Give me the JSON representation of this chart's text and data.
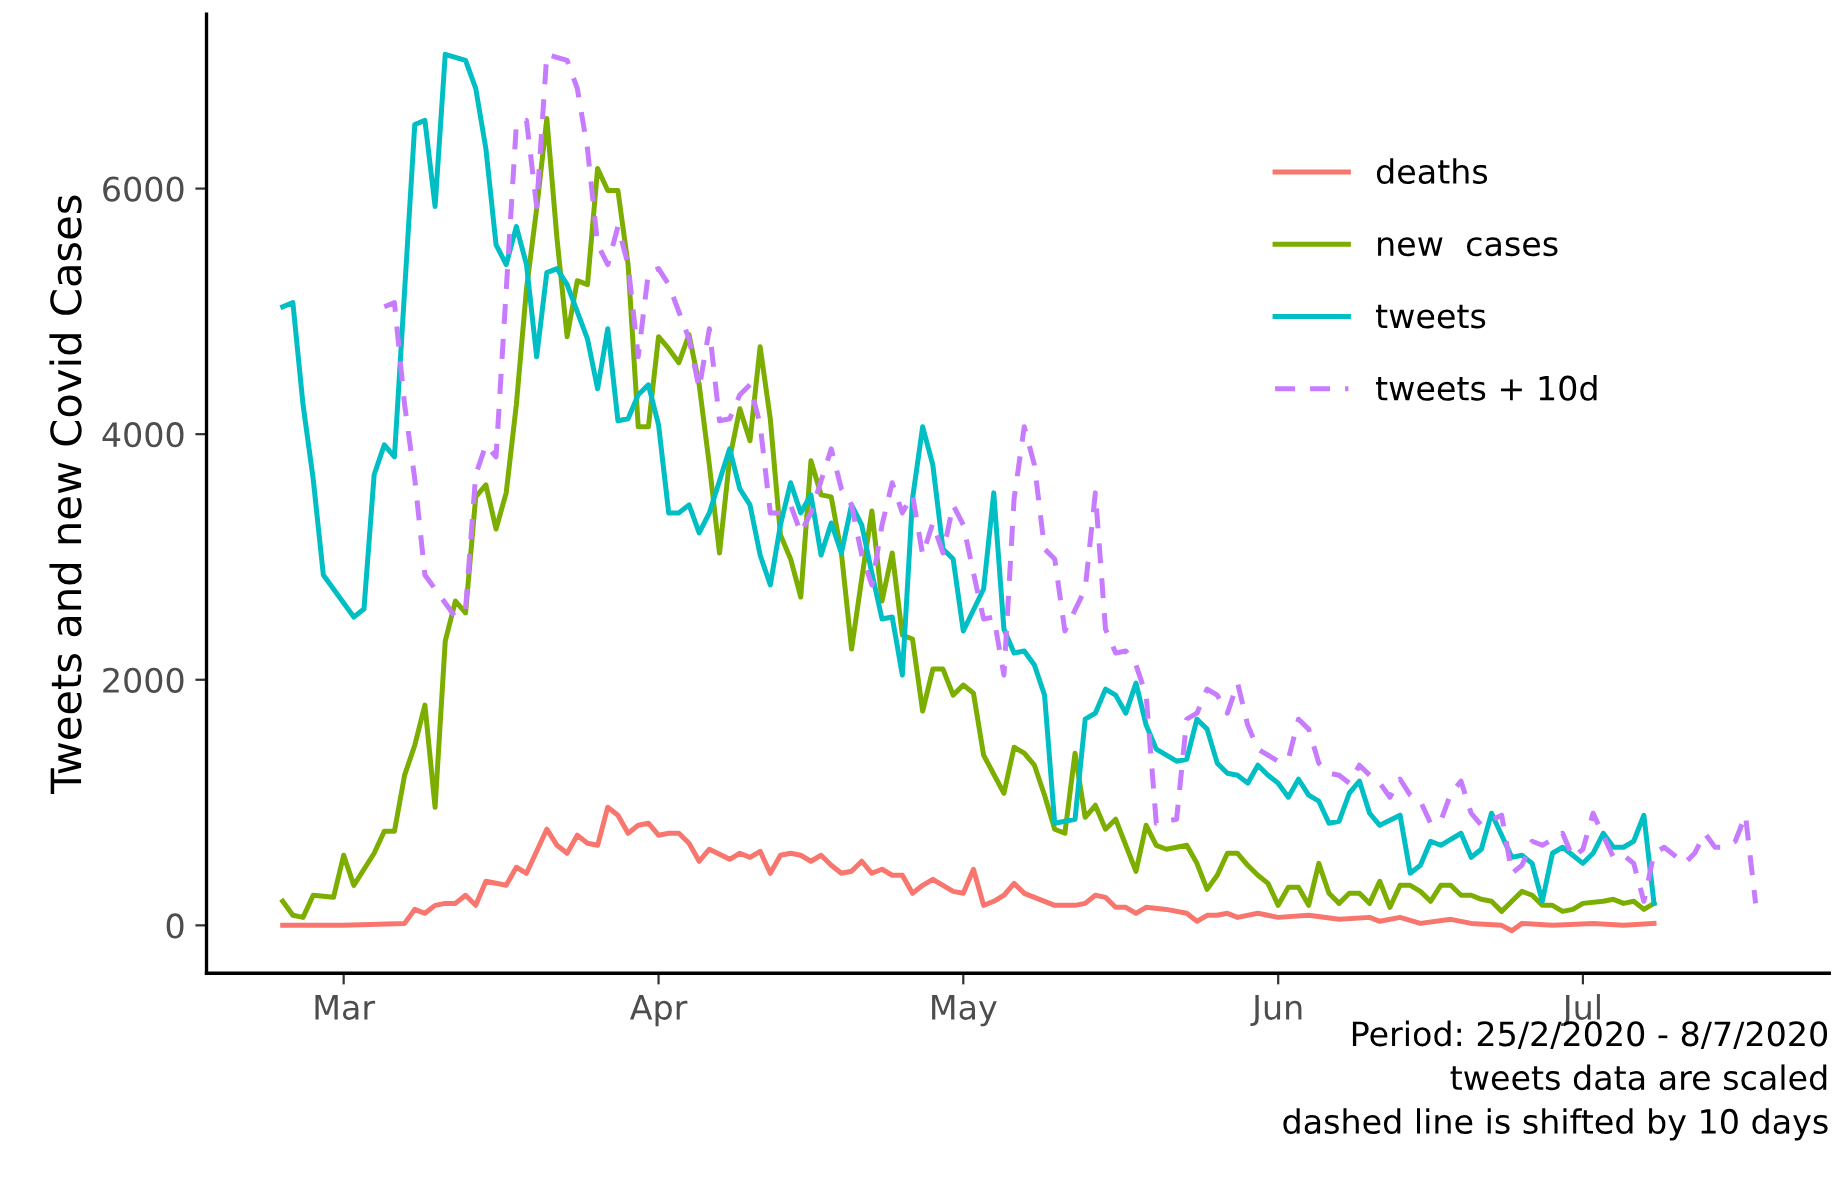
{
  "chart_data": {
    "type": "line",
    "ylabel": "Tweets and new Covid Cases",
    "legend": "right",
    "grid": false,
    "marker": "none",
    "xlim": [
      "2020-02-16T12:00",
      "2020-07-25T06:00"
    ],
    "ylim": [
      -390,
      7420
    ],
    "yticks": [
      0,
      2000,
      4000,
      6000
    ],
    "xticks": [
      {
        "value": "2020-03-01",
        "label": "Mar"
      },
      {
        "value": "2020-04-01",
        "label": "Apr"
      },
      {
        "value": "2020-05-01",
        "label": "May"
      },
      {
        "value": "2020-06-01",
        "label": "Jun"
      },
      {
        "value": "2020-07-01",
        "label": "Jul"
      }
    ],
    "annotations": [
      "Period: 25/2/2020 - 8/7/2020",
      "tweets data are scaled",
      "dashed line is shifted by 10 days"
    ],
    "series": [
      {
        "name": "deaths",
        "color": "#f8766d",
        "line_style": "solid",
        "x": [
          "2020-02-24",
          "2020-03-01",
          "2020-03-07",
          "2020-03-08",
          "2020-03-09",
          "2020-03-10",
          "2020-03-11",
          "2020-03-12",
          "2020-03-13",
          "2020-03-14",
          "2020-03-15",
          "2020-03-17",
          "2020-03-18",
          "2020-03-19",
          "2020-03-21",
          "2020-03-22",
          "2020-03-23",
          "2020-03-24",
          "2020-03-25",
          "2020-03-26",
          "2020-03-27",
          "2020-03-28",
          "2020-03-29",
          "2020-03-30",
          "2020-03-31",
          "2020-04-01",
          "2020-04-02",
          "2020-04-03",
          "2020-04-04",
          "2020-04-05",
          "2020-04-06",
          "2020-04-08",
          "2020-04-09",
          "2020-04-10",
          "2020-04-11",
          "2020-04-12",
          "2020-04-13",
          "2020-04-14",
          "2020-04-15",
          "2020-04-16",
          "2020-04-17",
          "2020-04-18",
          "2020-04-19",
          "2020-04-20",
          "2020-04-21",
          "2020-04-22",
          "2020-04-23",
          "2020-04-24",
          "2020-04-25",
          "2020-04-26",
          "2020-04-27",
          "2020-04-28",
          "2020-04-29",
          "2020-04-30",
          "2020-05-01",
          "2020-05-02",
          "2020-05-03",
          "2020-05-04",
          "2020-05-05",
          "2020-05-06",
          "2020-05-07",
          "2020-05-08",
          "2020-05-10",
          "2020-05-11",
          "2020-05-12",
          "2020-05-13",
          "2020-05-14",
          "2020-05-15",
          "2020-05-16",
          "2020-05-17",
          "2020-05-18",
          "2020-05-19",
          "2020-05-21",
          "2020-05-23",
          "2020-05-24",
          "2020-05-25",
          "2020-05-26",
          "2020-05-27",
          "2020-05-28",
          "2020-05-30",
          "2020-06-01",
          "2020-06-04",
          "2020-06-07",
          "2020-06-10",
          "2020-06-11",
          "2020-06-13",
          "2020-06-15",
          "2020-06-18",
          "2020-06-20",
          "2020-06-23",
          "2020-06-24",
          "2020-06-25",
          "2020-06-28",
          "2020-07-02",
          "2020-07-05",
          "2020-07-08"
        ],
        "values": [
          0,
          0,
          16,
          130,
          98,
          163,
          179,
          179,
          245,
          163,
          359,
          326,
          473,
          424,
          783,
          652,
          587,
          734,
          669,
          652,
          962,
          897,
          750,
          815,
          832,
          734,
          750,
          750,
          669,
          522,
          620,
          538,
          587,
          554,
          603,
          424,
          571,
          587,
          571,
          522,
          571,
          489,
          424,
          440,
          522,
          424,
          457,
          408,
          408,
          261,
          326,
          375,
          326,
          277,
          261,
          457,
          163,
          196,
          245,
          342,
          261,
          228,
          163,
          163,
          163,
          179,
          245,
          228,
          147,
          147,
          98,
          147,
          130,
          98,
          33,
          82,
          82,
          98,
          65,
          98,
          65,
          82,
          49,
          65,
          33,
          65,
          16,
          49,
          16,
          0,
          -44,
          16,
          0,
          16,
          0,
          16
        ]
      },
      {
        "name": "new  cases",
        "color": "#7cae00",
        "line_style": "solid",
        "x": [
          "2020-02-24",
          "2020-02-25",
          "2020-02-26",
          "2020-02-27",
          "2020-02-29",
          "2020-03-01",
          "2020-03-02",
          "2020-03-04",
          "2020-03-05",
          "2020-03-06",
          "2020-03-07",
          "2020-03-08",
          "2020-03-09",
          "2020-03-10",
          "2020-03-11",
          "2020-03-12",
          "2020-03-13",
          "2020-03-14",
          "2020-03-15",
          "2020-03-16",
          "2020-03-17",
          "2020-03-18",
          "2020-03-19",
          "2020-03-20",
          "2020-03-21",
          "2020-03-22",
          "2020-03-23",
          "2020-03-24",
          "2020-03-25",
          "2020-03-26",
          "2020-03-27",
          "2020-03-28",
          "2020-03-29",
          "2020-03-30",
          "2020-03-31",
          "2020-04-01",
          "2020-04-02",
          "2020-04-03",
          "2020-04-04",
          "2020-04-05",
          "2020-04-06",
          "2020-04-07",
          "2020-04-08",
          "2020-04-09",
          "2020-04-10",
          "2020-04-11",
          "2020-04-12",
          "2020-04-13",
          "2020-04-14",
          "2020-04-15",
          "2020-04-16",
          "2020-04-17",
          "2020-04-18",
          "2020-04-19",
          "2020-04-20",
          "2020-04-21",
          "2020-04-22",
          "2020-04-23",
          "2020-04-24",
          "2020-04-25",
          "2020-04-26",
          "2020-04-27",
          "2020-04-28",
          "2020-04-29",
          "2020-04-30",
          "2020-05-01",
          "2020-05-02",
          "2020-05-03",
          "2020-05-05",
          "2020-05-06",
          "2020-05-07",
          "2020-05-08",
          "2020-05-09",
          "2020-05-10",
          "2020-05-11",
          "2020-05-12",
          "2020-05-13",
          "2020-05-14",
          "2020-05-15",
          "2020-05-16",
          "2020-05-18",
          "2020-05-19",
          "2020-05-20",
          "2020-05-21",
          "2020-05-23",
          "2020-05-24",
          "2020-05-25",
          "2020-05-26",
          "2020-05-27",
          "2020-05-28",
          "2020-05-29",
          "2020-05-30",
          "2020-05-31",
          "2020-06-01",
          "2020-06-02",
          "2020-06-03",
          "2020-06-04",
          "2020-06-05",
          "2020-06-06",
          "2020-06-07",
          "2020-06-08",
          "2020-06-09",
          "2020-06-10",
          "2020-06-11",
          "2020-06-12",
          "2020-06-13",
          "2020-06-14",
          "2020-06-15",
          "2020-06-16",
          "2020-06-17",
          "2020-06-18",
          "2020-06-19",
          "2020-06-20",
          "2020-06-21",
          "2020-06-22",
          "2020-06-23",
          "2020-06-24",
          "2020-06-25",
          "2020-06-26",
          "2020-06-27",
          "2020-06-28",
          "2020-06-29",
          "2020-06-30",
          "2020-07-01",
          "2020-07-03",
          "2020-07-04",
          "2020-07-05",
          "2020-07-06",
          "2020-07-07",
          "2020-07-08"
        ],
        "values": [
          196,
          82,
          65,
          245,
          228,
          571,
          326,
          587,
          766,
          766,
          1223,
          1467,
          1794,
          962,
          2315,
          2641,
          2544,
          3489,
          3587,
          3228,
          3522,
          4240,
          5185,
          5837,
          6571,
          5593,
          4794,
          5250,
          5218,
          6163,
          5984,
          5984,
          5381,
          4060,
          4060,
          4794,
          4696,
          4582,
          4810,
          4402,
          3750,
          3033,
          3799,
          4207,
          3946,
          4712,
          4125,
          3180,
          2984,
          2674,
          3783,
          3506,
          3489,
          3033,
          2250,
          2821,
          3375,
          2641,
          3033,
          2364,
          2332,
          1745,
          2087,
          2087,
          1875,
          1957,
          1891,
          1386,
          1076,
          1451,
          1402,
          1304,
          1060,
          783,
          750,
          1402,
          880,
          978,
          783,
          864,
          440,
          815,
          652,
          620,
          652,
          505,
          293,
          408,
          587,
          587,
          489,
          408,
          342,
          163,
          310,
          310,
          163,
          505,
          261,
          179,
          261,
          261,
          179,
          359,
          147,
          326,
          326,
          277,
          196,
          326,
          326,
          245,
          245,
          212,
          196,
          114,
          196,
          277,
          245,
          163,
          163,
          114,
          130,
          179,
          196,
          212,
          179,
          196,
          130,
          179
        ]
      },
      {
        "name": "tweets",
        "color": "#00bfc4",
        "line_style": "solid",
        "x": [
          "2020-02-24",
          "2020-02-25",
          "2020-02-26",
          "2020-02-27",
          "2020-02-28",
          "2020-03-02",
          "2020-03-03",
          "2020-03-04",
          "2020-03-05",
          "2020-03-06",
          "2020-03-08",
          "2020-03-09",
          "2020-03-10",
          "2020-03-11",
          "2020-03-13",
          "2020-03-14",
          "2020-03-15",
          "2020-03-16",
          "2020-03-17",
          "2020-03-18",
          "2020-03-19",
          "2020-03-20",
          "2020-03-21",
          "2020-03-22",
          "2020-03-23",
          "2020-03-25",
          "2020-03-26",
          "2020-03-27",
          "2020-03-28",
          "2020-03-29",
          "2020-03-30",
          "2020-03-31",
          "2020-04-01",
          "2020-04-02",
          "2020-04-03",
          "2020-04-04",
          "2020-04-05",
          "2020-04-06",
          "2020-04-08",
          "2020-04-09",
          "2020-04-10",
          "2020-04-11",
          "2020-04-12",
          "2020-04-13",
          "2020-04-14",
          "2020-04-15",
          "2020-04-16",
          "2020-04-17",
          "2020-04-18",
          "2020-04-19",
          "2020-04-20",
          "2020-04-21",
          "2020-04-22",
          "2020-04-23",
          "2020-04-24",
          "2020-04-25",
          "2020-04-26",
          "2020-04-27",
          "2020-04-28",
          "2020-04-29",
          "2020-04-30",
          "2020-05-01",
          "2020-05-03",
          "2020-05-04",
          "2020-05-05",
          "2020-05-06",
          "2020-05-07",
          "2020-05-08",
          "2020-05-09",
          "2020-05-10",
          "2020-05-12",
          "2020-05-13",
          "2020-05-14",
          "2020-05-15",
          "2020-05-16",
          "2020-05-17",
          "2020-05-18",
          "2020-05-19",
          "2020-05-20",
          "2020-05-22",
          "2020-05-23",
          "2020-05-24",
          "2020-05-25",
          "2020-05-26",
          "2020-05-27",
          "2020-05-28",
          "2020-05-29",
          "2020-05-30",
          "2020-05-31",
          "2020-06-01",
          "2020-06-02",
          "2020-06-03",
          "2020-06-04",
          "2020-06-05",
          "2020-06-06",
          "2020-06-07",
          "2020-06-08",
          "2020-06-09",
          "2020-06-10",
          "2020-06-11",
          "2020-06-13",
          "2020-06-14",
          "2020-06-15",
          "2020-06-16",
          "2020-06-17",
          "2020-06-19",
          "2020-06-20",
          "2020-06-21",
          "2020-06-22",
          "2020-06-23",
          "2020-06-24",
          "2020-06-25",
          "2020-06-26",
          "2020-06-27",
          "2020-06-28",
          "2020-06-29",
          "2020-06-30",
          "2020-07-01",
          "2020-07-02",
          "2020-07-03",
          "2020-07-04",
          "2020-07-05",
          "2020-07-06",
          "2020-07-07",
          "2020-07-08"
        ],
        "values": [
          5038,
          5071,
          4240,
          3636,
          2853,
          2511,
          2576,
          3669,
          3913,
          3815,
          6522,
          6555,
          5854,
          7093,
          7044,
          6816,
          6326,
          5544,
          5381,
          5691,
          5381,
          4631,
          5316,
          5348,
          5218,
          4777,
          4370,
          4859,
          4109,
          4125,
          4321,
          4402,
          4076,
          3359,
          3359,
          3424,
          3196,
          3359,
          3881,
          3555,
          3424,
          3016,
          2772,
          3261,
          3604,
          3359,
          3506,
          3016,
          3277,
          3033,
          3424,
          3261,
          2870,
          2495,
          2511,
          2038,
          3473,
          4060,
          3750,
          3065,
          2984,
          2397,
          2739,
          3522,
          2413,
          2218,
          2234,
          2120,
          1875,
          832,
          864,
          1679,
          1728,
          1924,
          1875,
          1728,
          1973,
          1631,
          1435,
          1337,
          1353,
          1679,
          1598,
          1321,
          1239,
          1223,
          1158,
          1304,
          1223,
          1158,
          1044,
          1190,
          1060,
          1011,
          832,
          848,
          1076,
          1174,
          913,
          815,
          897,
          424,
          489,
          685,
          652,
          750,
          554,
          620,
          913,
          734,
          554,
          571,
          505,
          196,
          587,
          636,
          571,
          505,
          587,
          750,
          636,
          636,
          685,
          897,
          179
        ]
      },
      {
        "name": "tweets + 10d",
        "color": "#c77cff",
        "line_style": "dashed",
        "x": [
          "2020-03-05",
          "2020-03-06",
          "2020-03-07",
          "2020-03-08",
          "2020-03-09",
          "2020-03-12",
          "2020-03-13",
          "2020-03-14",
          "2020-03-15",
          "2020-03-16",
          "2020-03-18",
          "2020-03-19",
          "2020-03-20",
          "2020-03-21",
          "2020-03-23",
          "2020-03-24",
          "2020-03-25",
          "2020-03-26",
          "2020-03-27",
          "2020-03-28",
          "2020-03-29",
          "2020-03-30",
          "2020-03-31",
          "2020-04-01",
          "2020-04-02",
          "2020-04-04",
          "2020-04-05",
          "2020-04-06",
          "2020-04-07",
          "2020-04-08",
          "2020-04-09",
          "2020-04-10",
          "2020-04-11",
          "2020-04-12",
          "2020-04-13",
          "2020-04-14",
          "2020-04-15",
          "2020-04-16",
          "2020-04-18",
          "2020-04-19",
          "2020-04-20",
          "2020-04-21",
          "2020-04-22",
          "2020-04-23",
          "2020-04-24",
          "2020-04-25",
          "2020-04-26",
          "2020-04-27",
          "2020-04-28",
          "2020-04-29",
          "2020-04-30",
          "2020-05-01",
          "2020-05-02",
          "2020-05-03",
          "2020-05-04",
          "2020-05-05",
          "2020-05-06",
          "2020-05-07",
          "2020-05-08",
          "2020-05-09",
          "2020-05-10",
          "2020-05-11",
          "2020-05-13",
          "2020-05-14",
          "2020-05-15",
          "2020-05-16",
          "2020-05-17",
          "2020-05-18",
          "2020-05-19",
          "2020-05-20",
          "2020-05-22",
          "2020-05-23",
          "2020-05-24",
          "2020-05-25",
          "2020-05-26",
          "2020-05-27",
          "2020-05-28",
          "2020-05-29",
          "2020-05-30",
          "2020-06-01",
          "2020-06-02",
          "2020-06-03",
          "2020-06-04",
          "2020-06-05",
          "2020-06-06",
          "2020-06-07",
          "2020-06-08",
          "2020-06-09",
          "2020-06-10",
          "2020-06-11",
          "2020-06-12",
          "2020-06-13",
          "2020-06-14",
          "2020-06-15",
          "2020-06-16",
          "2020-06-17",
          "2020-06-18",
          "2020-06-19",
          "2020-06-20",
          "2020-06-21",
          "2020-06-23",
          "2020-06-24",
          "2020-06-25",
          "2020-06-26",
          "2020-06-27",
          "2020-06-29",
          "2020-06-30",
          "2020-07-01",
          "2020-07-02",
          "2020-07-03",
          "2020-07-04",
          "2020-07-05",
          "2020-07-06",
          "2020-07-07",
          "2020-07-08",
          "2020-07-09",
          "2020-07-10",
          "2020-07-11",
          "2020-07-12",
          "2020-07-13",
          "2020-07-14",
          "2020-07-15",
          "2020-07-16",
          "2020-07-17",
          "2020-07-18"
        ],
        "values": [
          5038,
          5071,
          4240,
          3636,
          2853,
          2511,
          2576,
          3669,
          3913,
          3815,
          6522,
          6555,
          5854,
          7093,
          7044,
          6816,
          6326,
          5544,
          5381,
          5691,
          5381,
          4631,
          5316,
          5348,
          5218,
          4777,
          4370,
          4859,
          4109,
          4125,
          4321,
          4402,
          4076,
          3359,
          3359,
          3424,
          3196,
          3359,
          3881,
          3555,
          3424,
          3016,
          2772,
          3261,
          3604,
          3359,
          3506,
          3016,
          3277,
          3033,
          3424,
          3261,
          2870,
          2495,
          2511,
          2038,
          3473,
          4060,
          3750,
          3065,
          2984,
          2397,
          2739,
          3522,
          2413,
          2218,
          2234,
          2120,
          1875,
          832,
          864,
          1679,
          1728,
          1924,
          1875,
          1728,
          1973,
          1631,
          1435,
          1337,
          1353,
          1679,
          1598,
          1321,
          1239,
          1223,
          1158,
          1304,
          1223,
          1158,
          1044,
          1190,
          1060,
          1011,
          832,
          848,
          1076,
          1174,
          913,
          815,
          897,
          424,
          489,
          685,
          652,
          750,
          554,
          620,
          913,
          734,
          554,
          571,
          505,
          196,
          587,
          636,
          571,
          505,
          587,
          750,
          636,
          636,
          685,
          897,
          179
        ]
      }
    ]
  }
}
